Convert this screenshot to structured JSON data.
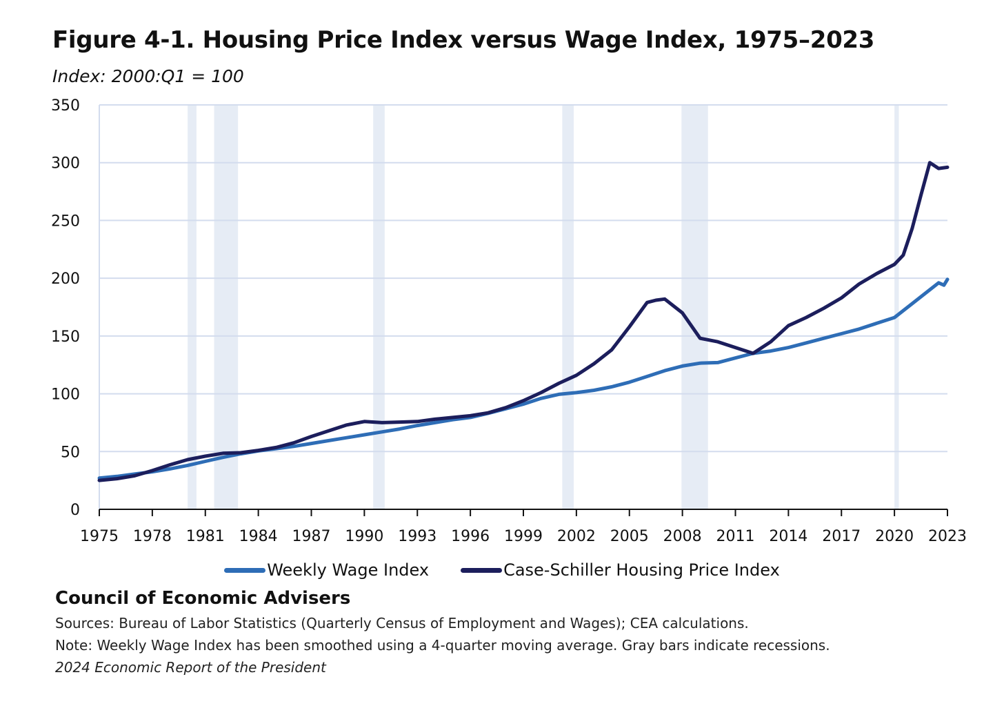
{
  "header": {
    "title": "Figure 4-1. Housing Price Index versus Wage Index, 1975–2023",
    "subtitle": "Index: 2000:Q1 = 100"
  },
  "chart_data": {
    "type": "line",
    "title": "Figure 4-1. Housing Price Index versus Wage Index, 1975–2023",
    "subtitle": "Index: 2000:Q1 = 100",
    "xlabel": "",
    "ylabel": "",
    "xlim": [
      1975,
      2023
    ],
    "ylim": [
      0,
      350
    ],
    "y_ticks": [
      0,
      50,
      100,
      150,
      200,
      250,
      300,
      350
    ],
    "x_ticks": [
      1975,
      1978,
      1981,
      1984,
      1987,
      1990,
      1993,
      1996,
      1999,
      2002,
      2005,
      2008,
      2011,
      2014,
      2017,
      2020,
      2023
    ],
    "grid": true,
    "legend_position": "bottom",
    "recessions": [
      [
        1980.0,
        1980.5
      ],
      [
        1981.5,
        1982.85
      ],
      [
        1990.5,
        1991.15
      ],
      [
        2001.2,
        2001.85
      ],
      [
        2007.95,
        2009.45
      ],
      [
        2020.0,
        2020.25
      ]
    ],
    "series": [
      {
        "name": "Weekly Wage Index",
        "color": "#2e6db6",
        "points": [
          [
            1975,
            27
          ],
          [
            1976,
            28.5
          ],
          [
            1977,
            30.5
          ],
          [
            1978,
            32.5
          ],
          [
            1979,
            35
          ],
          [
            1980,
            38
          ],
          [
            1981,
            41.5
          ],
          [
            1982,
            45
          ],
          [
            1983,
            48
          ],
          [
            1984,
            50.5
          ],
          [
            1985,
            52.5
          ],
          [
            1986,
            54.5
          ],
          [
            1987,
            57
          ],
          [
            1988,
            59.5
          ],
          [
            1989,
            62
          ],
          [
            1990,
            64.5
          ],
          [
            1991,
            67
          ],
          [
            1992,
            69.5
          ],
          [
            1993,
            72.5
          ],
          [
            1994,
            75
          ],
          [
            1995,
            77.5
          ],
          [
            1996,
            79.5
          ],
          [
            1997,
            83
          ],
          [
            1998,
            87
          ],
          [
            1999,
            91
          ],
          [
            2000,
            96
          ],
          [
            2001,
            99.5
          ],
          [
            2002,
            101
          ],
          [
            2003,
            103
          ],
          [
            2004,
            106
          ],
          [
            2005,
            110
          ],
          [
            2006,
            115
          ],
          [
            2007,
            120
          ],
          [
            2008,
            124
          ],
          [
            2009,
            126.5
          ],
          [
            2010,
            127
          ],
          [
            2011,
            131
          ],
          [
            2012,
            135
          ],
          [
            2013,
            137
          ],
          [
            2014,
            140
          ],
          [
            2015,
            144
          ],
          [
            2016,
            148
          ],
          [
            2017,
            152
          ],
          [
            2018,
            156
          ],
          [
            2019,
            161
          ],
          [
            2020,
            166
          ],
          [
            2021,
            178
          ],
          [
            2022,
            190
          ],
          [
            2022.5,
            196
          ],
          [
            2022.8,
            194
          ],
          [
            2023,
            199
          ]
        ]
      },
      {
        "name": "Case-Schiller Housing Price Index",
        "color": "#1c1e5c",
        "points": [
          [
            1975,
            25
          ],
          [
            1976,
            26.5
          ],
          [
            1977,
            29
          ],
          [
            1978,
            33.5
          ],
          [
            1979,
            38.5
          ],
          [
            1980,
            43
          ],
          [
            1981,
            46
          ],
          [
            1982,
            48.5
          ],
          [
            1983,
            49
          ],
          [
            1984,
            51
          ],
          [
            1985,
            53.5
          ],
          [
            1986,
            57.5
          ],
          [
            1987,
            63
          ],
          [
            1988,
            68
          ],
          [
            1989,
            73
          ],
          [
            1990,
            76
          ],
          [
            1991,
            75
          ],
          [
            1992,
            75.5
          ],
          [
            1993,
            76
          ],
          [
            1994,
            78
          ],
          [
            1995,
            79.5
          ],
          [
            1996,
            81
          ],
          [
            1997,
            83.5
          ],
          [
            1998,
            88
          ],
          [
            1999,
            94
          ],
          [
            2000,
            101
          ],
          [
            2001,
            109
          ],
          [
            2002,
            116
          ],
          [
            2003,
            126
          ],
          [
            2004,
            138
          ],
          [
            2005,
            158
          ],
          [
            2006,
            179
          ],
          [
            2006.5,
            181
          ],
          [
            2007,
            182
          ],
          [
            2008,
            170
          ],
          [
            2009,
            148
          ],
          [
            2010,
            145
          ],
          [
            2011,
            140
          ],
          [
            2012,
            135
          ],
          [
            2013,
            145
          ],
          [
            2014,
            159
          ],
          [
            2015,
            166
          ],
          [
            2016,
            174
          ],
          [
            2017,
            183
          ],
          [
            2018,
            195
          ],
          [
            2019,
            204
          ],
          [
            2020,
            212
          ],
          [
            2020.5,
            220
          ],
          [
            2021,
            243
          ],
          [
            2021.5,
            272
          ],
          [
            2022,
            300
          ],
          [
            2022.5,
            295
          ],
          [
            2023,
            296
          ]
        ]
      }
    ]
  },
  "footer": {
    "org": "Council of Economic Advisers",
    "sources": "Sources: Bureau of Labor Statistics (Quarterly Census of Employment and Wages); CEA calculations.",
    "note": "Note: Weekly Wage Index has been smoothed using a 4-quarter moving average. Gray bars indicate recessions.",
    "report": "2024 Economic Report of the President"
  }
}
